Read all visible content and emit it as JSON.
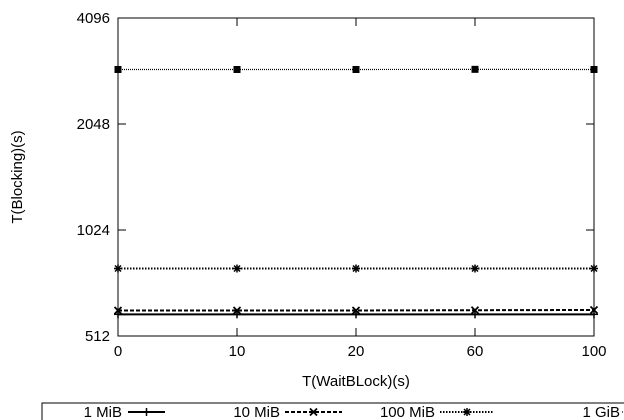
{
  "chart_data": {
    "type": "line",
    "xlabel": "T(WaitBLock)(s)",
    "ylabel": "T(Blocking)(s)",
    "y_scale": "log2",
    "ylim": [
      512,
      4096
    ],
    "y_ticks": [
      512,
      1024,
      2048,
      4096
    ],
    "x_tick_labels": [
      "0",
      "10",
      "20",
      "60",
      "100"
    ],
    "grid": false,
    "legend_position": "bottom",
    "series": [
      {
        "name": "1 MiB",
        "values": [
          590,
          590,
          590,
          590,
          590
        ],
        "color": "#000000",
        "dash": "solid",
        "marker": "plus"
      },
      {
        "name": "10 MiB",
        "values": [
          605,
          605,
          605,
          606,
          607
        ],
        "color": "#000000",
        "dash": "dashed",
        "marker": "x"
      },
      {
        "name": "100 MiB",
        "values": [
          796,
          796,
          796,
          796,
          796
        ],
        "color": "#000000",
        "dash": "dotted",
        "marker": "star"
      },
      {
        "name": "1 GiB",
        "values": [
          2925,
          2925,
          2925,
          2928,
          2925
        ],
        "color": "#000000",
        "dash": "fine",
        "marker": "square"
      }
    ]
  }
}
